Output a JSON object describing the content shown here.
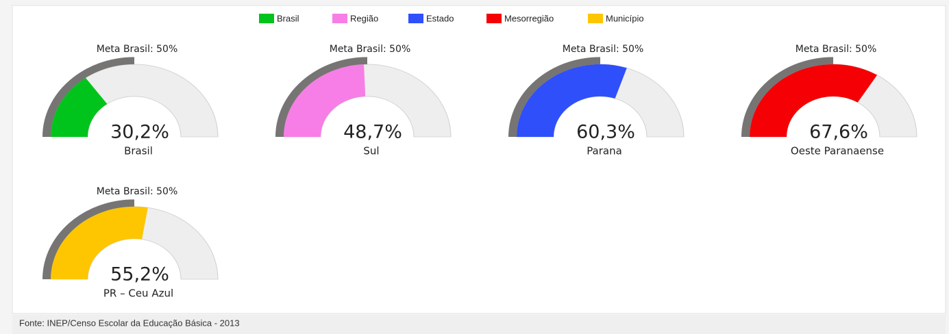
{
  "legend": [
    {
      "name": "Brasil",
      "color": "#00c41c"
    },
    {
      "name": "Região",
      "color": "#f77ee6"
    },
    {
      "name": "Estado",
      "color": "#2f4ffb"
    },
    {
      "name": "Mesorregião",
      "color": "#f50005"
    },
    {
      "name": "Município",
      "color": "#fdc600"
    }
  ],
  "chart_data": [
    {
      "type": "gauge",
      "title": "Meta Brasil: 50%",
      "target": 50,
      "value": 30.2,
      "value_label": "30,2%",
      "label": "Brasil",
      "color": "#00c41c",
      "ylim": [
        0,
        100
      ]
    },
    {
      "type": "gauge",
      "title": "Meta Brasil: 50%",
      "target": 50,
      "value": 48.7,
      "value_label": "48,7%",
      "label": "Sul",
      "color": "#f77ee6",
      "ylim": [
        0,
        100
      ]
    },
    {
      "type": "gauge",
      "title": "Meta Brasil: 50%",
      "target": 50,
      "value": 60.3,
      "value_label": "60,3%",
      "label": "Parana",
      "color": "#2f4ffb",
      "ylim": [
        0,
        100
      ]
    },
    {
      "type": "gauge",
      "title": "Meta Brasil: 50%",
      "target": 50,
      "value": 67.6,
      "value_label": "67,6%",
      "label": "Oeste Paranaense",
      "color": "#f50005",
      "ylim": [
        0,
        100
      ]
    },
    {
      "type": "gauge",
      "title": "Meta Brasil: 50%",
      "target": 50,
      "value": 55.2,
      "value_label": "55,2%",
      "label": "PR – Ceu Azul",
      "color": "#fdc600",
      "ylim": [
        0,
        100
      ]
    }
  ],
  "source": "Fonte: INEP/Censo Escolar da Educação Básica - 2013"
}
